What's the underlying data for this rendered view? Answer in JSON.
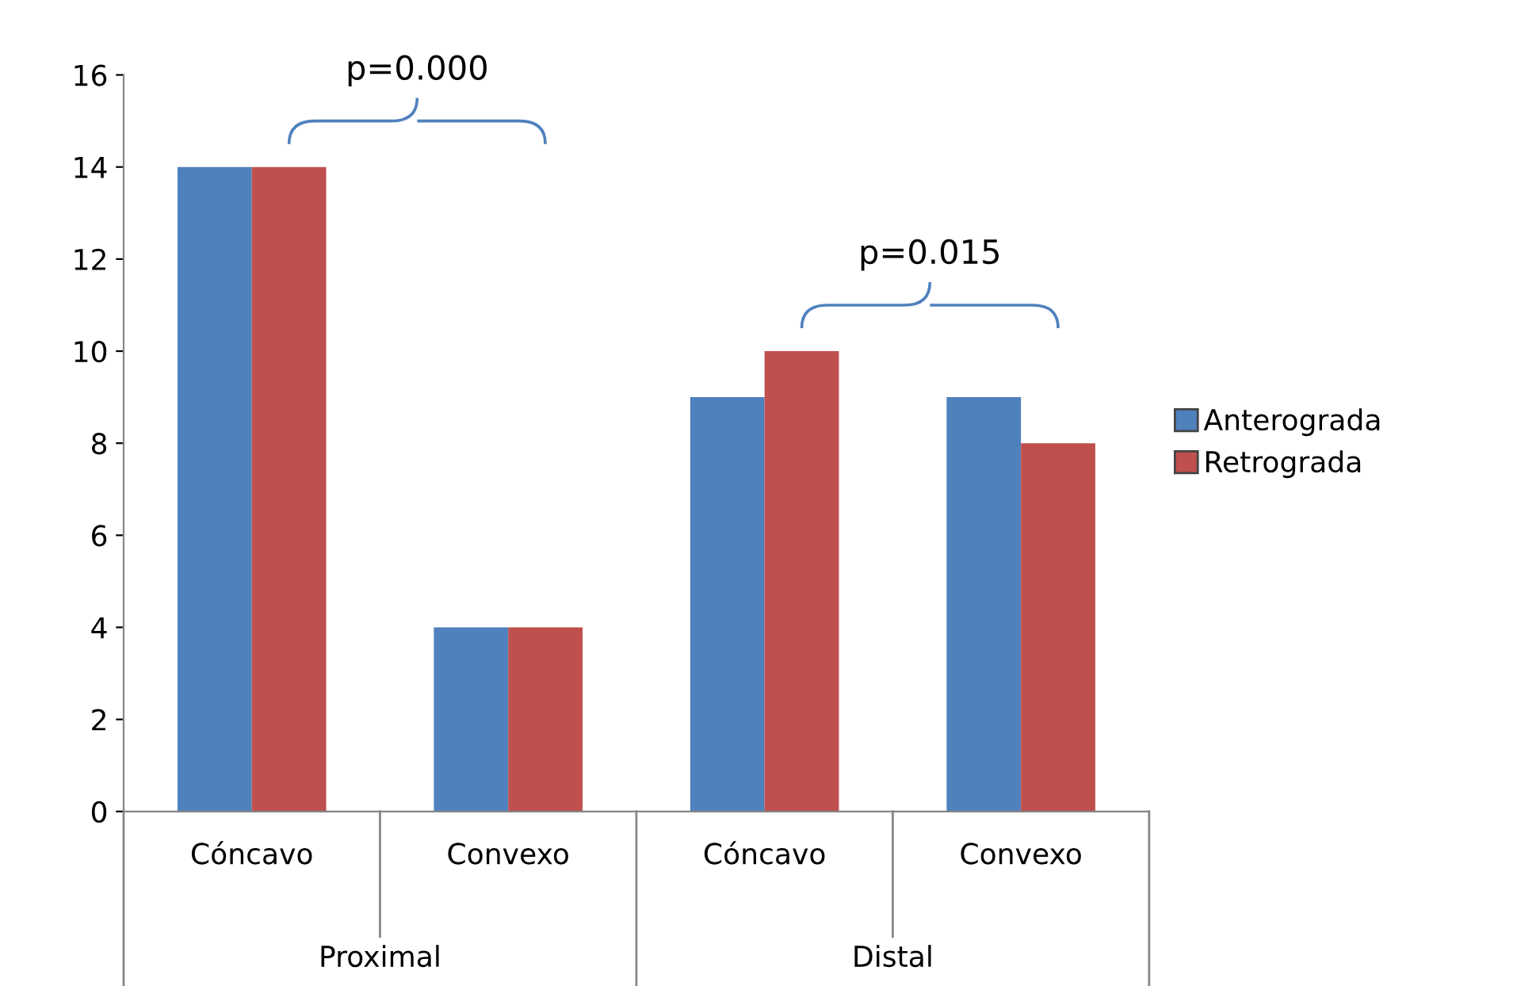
{
  "chart_data": {
    "type": "bar",
    "categories": [
      "Cóncavo",
      "Convexo",
      "Cóncavo",
      "Convexo"
    ],
    "series": [
      {
        "name": "Anterograda",
        "color": "#4f81bd",
        "values": [
          14,
          4,
          9,
          9
        ]
      },
      {
        "name": "Retrograda",
        "color": "#c0504d",
        "values": [
          14,
          4,
          10,
          8
        ]
      }
    ],
    "ylim": [
      0,
      16
    ],
    "yticks": [
      0,
      2,
      4,
      6,
      8,
      10,
      12,
      14,
      16
    ],
    "grid": false,
    "legend": "right",
    "annotations": [
      "p=0.000",
      "p=0.015",
      "Proximal",
      "Distal"
    ]
  }
}
